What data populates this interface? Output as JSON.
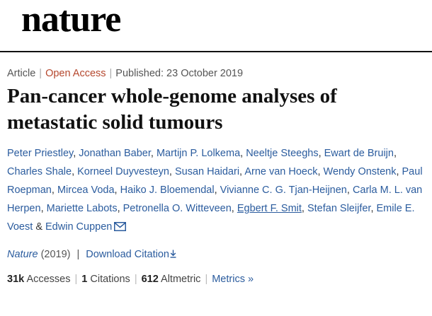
{
  "header": {
    "logo": "nature"
  },
  "article": {
    "type": "Article",
    "access": "Open Access",
    "published": "Published: 23 October 2019",
    "title": "Pan-cancer whole-genome analyses of metastatic solid tumours"
  },
  "authors": [
    "Peter Priestley",
    "Jonathan Baber",
    "Martijn P. Lolkema",
    "Neeltje Steeghs",
    "Ewart de Bruijn",
    "Charles Shale",
    "Korneel Duyvesteyn",
    "Susan Haidari",
    "Arne van Hoeck",
    "Wendy Onstenk",
    "Paul Roepman",
    "Mircea Voda",
    "Haiko J. Bloemendal",
    "Vivianne C. G. Tjan-Heijnen",
    "Carla M. L. van Herpen",
    "Mariette Labots",
    "Petronella O. Witteveen",
    "Egbert F. Smit",
    "Stefan Sleijfer",
    "Emile E. Voest",
    "Edwin Cuppen"
  ],
  "authors_last_join": "&",
  "citation": {
    "journal": "Nature",
    "year": "(2019)",
    "separator": "|",
    "download_label": "Download Citation"
  },
  "metrics": {
    "accesses_count": "31k",
    "accesses_label": "Accesses",
    "citations_count": "1",
    "citations_label": "Citations",
    "altmetric_count": "612",
    "altmetric_label": "Altmetric",
    "details_label": "Metrics",
    "details_arrow": "»"
  },
  "colors": {
    "link": "#2b5c9e",
    "open_access": "#b5472d",
    "rule": "#111111"
  },
  "icons": {
    "corresponding_author": "mail-icon",
    "download": "download-arrow-icon"
  }
}
